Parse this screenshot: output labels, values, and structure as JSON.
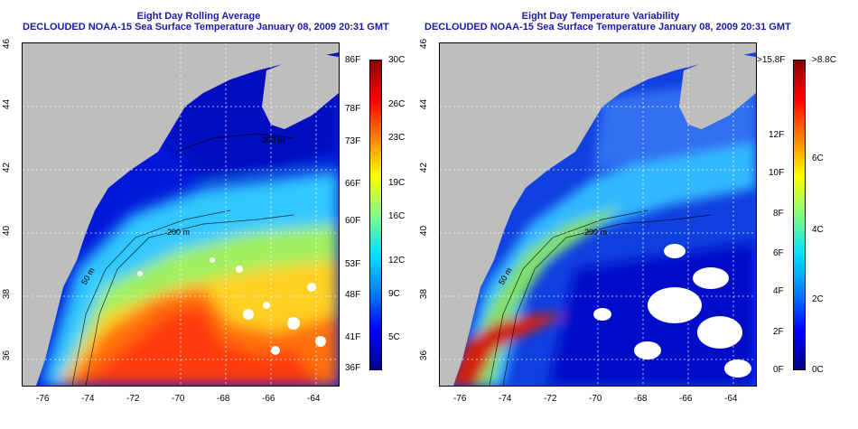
{
  "left_panel": {
    "title_line1": "Eight Day Rolling Average",
    "title_line2": "DECLOUDED NOAA-15 Sea Surface Temperature January 08, 2009 20:31 GMT",
    "colorbar_f": [
      "86F",
      "78F",
      "73F",
      "66F",
      "60F",
      "53F",
      "48F",
      "41F",
      "36F"
    ],
    "colorbar_c": [
      "30C",
      "26C",
      "23C",
      "19C",
      "16C",
      "12C",
      "9C",
      "5C"
    ],
    "contour_labels": [
      "200 m",
      "50 m",
      "200 m"
    ]
  },
  "right_panel": {
    "title_line1": "Eight Day Temperature Variability",
    "title_line2": "DECLOUDED NOAA-15 Sea Surface Temperature January 08, 2009 20:31 GMT",
    "colorbar_f": [
      ">15.8F",
      "12F",
      "10F",
      "8F",
      "6F",
      "4F",
      "2F",
      "0F"
    ],
    "colorbar_c": [
      ">8.8C",
      "6C",
      "4C",
      "2C",
      "0C"
    ],
    "contour_labels": [
      "200 m",
      "50 m"
    ]
  },
  "axes": {
    "lon_ticks": [
      "-76",
      "-74",
      "-72",
      "-70",
      "-68",
      "-66",
      "-64"
    ],
    "lat_ticks": [
      "46",
      "44",
      "42",
      "40",
      "38",
      "36"
    ]
  },
  "colors": {
    "title": "#1a1aa6",
    "land": "#bebebe",
    "avg_gradient": [
      "#00008b",
      "#0000ff",
      "#0080ff",
      "#00e0ff",
      "#80ff80",
      "#ffff00",
      "#ff8000",
      "#ff0000",
      "#8b0000"
    ],
    "var_gradient": [
      "#00008b",
      "#0000ff",
      "#0080ff",
      "#00e0ff",
      "#80ff80",
      "#ffff00",
      "#ff8000",
      "#ff0000",
      "#8b0000"
    ]
  }
}
